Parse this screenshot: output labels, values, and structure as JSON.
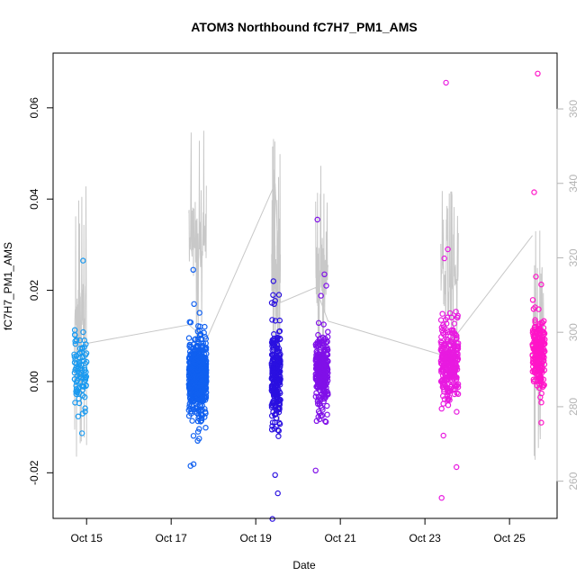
{
  "chart_data": {
    "type": "scatter",
    "title": "ATOM3 Northbound fC7H7_PM1_AMS",
    "xlabel": "Date",
    "ylabel": "fC7H7_PM1_AMS",
    "x_range_days": [
      "2016-10-14T05:00",
      "2016-10-26T03:00"
    ],
    "ylim": [
      -0.03,
      0.072
    ],
    "y2lim": [
      250,
      375
    ],
    "grid": false,
    "legend": "none",
    "x_ticks": [
      {
        "date": "2016-10-15",
        "label": "Oct 15"
      },
      {
        "date": "2016-10-17",
        "label": "Oct 17"
      },
      {
        "date": "2016-10-19",
        "label": "Oct 19"
      },
      {
        "date": "2016-10-21",
        "label": "Oct 21"
      },
      {
        "date": "2016-10-23",
        "label": "Oct 23"
      },
      {
        "date": "2016-10-25",
        "label": "Oct 25"
      }
    ],
    "y_ticks": [
      -0.02,
      0.0,
      0.02,
      0.04,
      0.06
    ],
    "y_tick_labels": [
      "-0.02",
      "0.00",
      "0.02",
      "0.04",
      "0.06"
    ],
    "y2_ticks": [
      260,
      280,
      300,
      320,
      340,
      360
    ],
    "y2_tick_labels": [
      "260",
      "280",
      "300",
      "320",
      "340",
      "360"
    ],
    "secondary_line_color": "#c8c8c8",
    "flights": [
      {
        "start": "2016-10-14T17:00",
        "end": "2016-10-15T00:00",
        "color": "#1a9af0",
        "center": 0.002,
        "spread": 0.004,
        "n": 90,
        "outliers": [
          {
            "x": "2016-10-14T22:00",
            "y": 0.0265
          }
        ]
      },
      {
        "start": "2016-10-17T10:00",
        "end": "2016-10-17T20:00",
        "color": "#1060f0",
        "center": 0.001,
        "spread": 0.004,
        "n": 600,
        "outliers": [
          {
            "x": "2016-10-17T11:00",
            "y": -0.0185
          },
          {
            "x": "2016-10-17T12:30",
            "y": 0.0245
          },
          {
            "x": "2016-10-17T13:00",
            "y": 0.017
          },
          {
            "x": "2016-10-17T15:00",
            "y": -0.013
          },
          {
            "x": "2016-10-17T19:00",
            "y": 0.012
          }
        ]
      },
      {
        "start": "2016-10-19T09:00",
        "end": "2016-10-19T14:00",
        "color": "#2a10e0",
        "center": 0.001,
        "spread": 0.005,
        "n": 260,
        "outliers": [
          {
            "x": "2016-10-19T10:00",
            "y": 0.022
          },
          {
            "x": "2016-10-19T11:00",
            "y": -0.0205
          },
          {
            "x": "2016-10-19T12:30",
            "y": -0.0245
          },
          {
            "x": "2016-10-19T10:30",
            "y": 0.017
          }
        ]
      },
      {
        "start": "2016-10-20T10:00",
        "end": "2016-10-20T17:00",
        "color": "#8010e8",
        "center": 0.002,
        "spread": 0.004,
        "n": 260,
        "outliers": [
          {
            "x": "2016-10-20T10:00",
            "y": -0.0195
          },
          {
            "x": "2016-10-20T11:00",
            "y": 0.0355
          },
          {
            "x": "2016-10-20T15:00",
            "y": 0.0235
          },
          {
            "x": "2016-10-20T16:00",
            "y": 0.021
          }
        ]
      },
      {
        "start": "2016-10-23T09:00",
        "end": "2016-10-23T19:00",
        "color": "#e81ae0",
        "center": 0.004,
        "spread": 0.004,
        "n": 300,
        "outliers": [
          {
            "x": "2016-10-23T12:00",
            "y": 0.0655
          },
          {
            "x": "2016-10-23T09:30",
            "y": -0.0255
          },
          {
            "x": "2016-10-23T13:00",
            "y": 0.029
          },
          {
            "x": "2016-10-23T11:00",
            "y": 0.027
          }
        ]
      },
      {
        "start": "2016-10-25T13:00",
        "end": "2016-10-25T20:00",
        "color": "#ff14c8",
        "center": 0.006,
        "spread": 0.004,
        "n": 220,
        "outliers": [
          {
            "x": "2016-10-25T16:00",
            "y": 0.0675
          },
          {
            "x": "2016-10-25T14:00",
            "y": 0.0415
          },
          {
            "x": "2016-10-25T15:00",
            "y": 0.023
          },
          {
            "x": "2016-10-25T18:00",
            "y": -0.009
          }
        ]
      }
    ],
    "secondary_series": {
      "name": "",
      "connectors": [
        {
          "x": "2016-10-15T00:00",
          "y": 297
        },
        {
          "x": "2016-10-17T10:00",
          "y": 302
        },
        {
          "x": "2016-10-17T20:00",
          "y": 298
        },
        {
          "x": "2016-10-19T11:00",
          "y": 340
        },
        {
          "x": "2016-10-19T14:00",
          "y": 308
        },
        {
          "x": "2016-10-20T10:00",
          "y": 312
        },
        {
          "x": "2016-10-20T17:00",
          "y": 303
        },
        {
          "x": "2016-10-23T09:00",
          "y": 294
        },
        {
          "x": "2016-10-23T19:00",
          "y": 300
        },
        {
          "x": "2016-10-25T13:00",
          "y": 326
        }
      ],
      "spikes": [
        {
          "start": "2016-10-14T17:00",
          "end": "2016-10-15T00:00",
          "max": 342,
          "min": 265
        },
        {
          "start": "2016-10-17T10:00",
          "end": "2016-10-17T20:00",
          "max": 356,
          "min": 296
        },
        {
          "start": "2016-10-19T09:00",
          "end": "2016-10-19T14:00",
          "max": 357,
          "min": 272
        },
        {
          "start": "2016-10-20T10:00",
          "end": "2016-10-20T17:00",
          "max": 351,
          "min": 283
        },
        {
          "start": "2016-10-23T09:00",
          "end": "2016-10-23T19:00",
          "max": 338,
          "min": 289
        },
        {
          "start": "2016-10-25T13:00",
          "end": "2016-10-25T20:00",
          "max": 328,
          "min": 265
        }
      ]
    }
  }
}
